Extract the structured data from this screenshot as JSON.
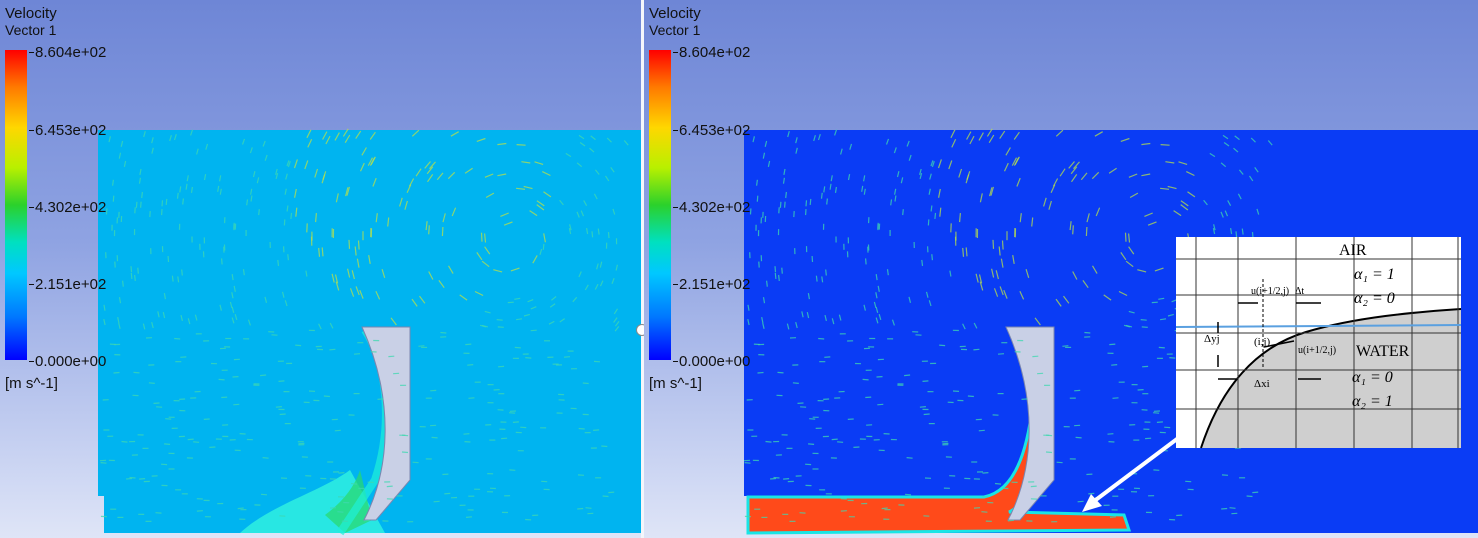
{
  "panels": [
    {
      "title": "Velocity",
      "subtitle": "Vector 1",
      "colorbar": {
        "max_label": "8.604e+02",
        "ticks": [
          "8.604e+02",
          "6.453e+02",
          "4.302e+02",
          "2.151e+02",
          "0.000e+00"
        ],
        "unit": "[m s^-1]",
        "colors": [
          "#ff0000",
          "#ffd700",
          "#2bd12b",
          "#00c8ff",
          "#0000ff"
        ]
      },
      "background_color": "#00b4f0"
    },
    {
      "title": "Velocity",
      "subtitle": "Vector 1",
      "colorbar": {
        "max_label": "8.604e+02",
        "ticks": [
          "8.604e+02",
          "6.453e+02",
          "4.302e+02",
          "2.151e+02",
          "0.000e+00"
        ],
        "unit": "[m s^-1]",
        "colors": [
          "#ff0000",
          "#ffd700",
          "#2bd12b",
          "#00c8ff",
          "#0000ff"
        ]
      },
      "background_color": "#0a3cf5",
      "jet_color": "#ff4a1a"
    }
  ],
  "inset": {
    "label_air": "AIR",
    "label_water": "WATER",
    "alpha_air_1": "α₁ = 1",
    "alpha_air_2": "α₂ = 0",
    "alpha_water_1": "α₁ = 0",
    "alpha_water_2": "α₂ = 1",
    "u_top": "u(i+1/2,j)",
    "dt": "Δt",
    "dy": "Δyj",
    "cell": "(i,j)",
    "u_right": "u(i+1/2,j)",
    "dx": "Δxi"
  }
}
